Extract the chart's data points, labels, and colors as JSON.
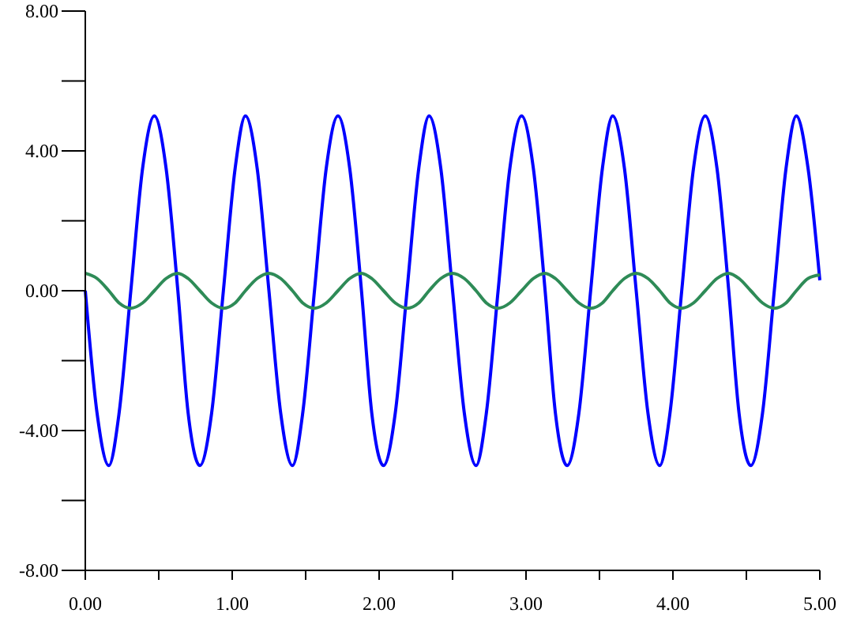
{
  "chart_data": {
    "type": "line",
    "x": [
      0,
      0.08,
      0.16,
      0.23,
      0.31,
      0.39,
      0.47,
      0.55,
      0.63,
      0.7,
      0.78,
      0.86,
      0.94,
      1.02,
      1.09,
      1.17,
      1.25,
      1.33,
      1.41,
      1.48,
      1.56,
      1.64,
      1.72,
      1.8,
      1.88,
      1.95,
      2.03,
      2.11,
      2.19,
      2.27,
      2.34,
      2.42,
      2.5,
      2.58,
      2.66,
      2.73,
      2.81,
      2.89,
      2.97,
      3.05,
      3.13,
      3.2,
      3.28,
      3.36,
      3.44,
      3.52,
      3.59,
      3.67,
      3.75,
      3.83,
      3.91,
      3.98,
      4.06,
      4.14,
      4.22,
      4.3,
      4.38,
      4.45,
      4.53,
      4.61,
      4.69,
      4.77,
      4.84,
      4.92,
      5.0
    ],
    "series": [
      {
        "color": "#0000ff",
        "values": [
          0,
          -3.5,
          -5,
          -3.5,
          0,
          3.5,
          5,
          3.5,
          0,
          -3.5,
          -5,
          -3.5,
          0,
          3.5,
          5,
          3.5,
          0,
          -3.5,
          -5,
          -3.5,
          0,
          3.5,
          5,
          3.5,
          0,
          -3.5,
          -5,
          -3.5,
          0,
          3.5,
          5,
          3.5,
          0,
          -3.5,
          -5,
          -3.5,
          0,
          3.5,
          5,
          3.5,
          0,
          -3.5,
          -5,
          -3.5,
          0,
          3.5,
          5,
          3.5,
          0,
          -3.5,
          -5,
          -3.5,
          0,
          3.5,
          5,
          3.5,
          0,
          -3.5,
          -5,
          -3.5,
          0,
          3.5,
          5,
          3.5,
          0.3
        ]
      },
      {
        "color": "#2e8b57",
        "values": [
          0.5,
          0.35,
          0,
          -0.35,
          -0.5,
          -0.35,
          0,
          0.35,
          0.5,
          0.35,
          0,
          -0.35,
          -0.5,
          -0.35,
          0,
          0.35,
          0.5,
          0.35,
          0,
          -0.35,
          -0.5,
          -0.35,
          0,
          0.35,
          0.5,
          0.35,
          0,
          -0.35,
          -0.5,
          -0.35,
          0,
          0.35,
          0.5,
          0.35,
          0,
          -0.35,
          -0.5,
          -0.35,
          0,
          0.35,
          0.5,
          0.35,
          0,
          -0.35,
          -0.5,
          -0.35,
          0,
          0.35,
          0.5,
          0.35,
          0,
          -0.35,
          -0.5,
          -0.35,
          0,
          0.35,
          0.5,
          0.35,
          0,
          -0.35,
          -0.5,
          -0.35,
          0,
          0.35,
          0.45
        ]
      }
    ],
    "xlim": [
      0,
      5
    ],
    "ylim": [
      -8,
      8
    ],
    "xticks": [
      {
        "value": 0,
        "label": "0.00"
      },
      {
        "value": 0.5,
        "label": null
      },
      {
        "value": 1,
        "label": "1.00"
      },
      {
        "value": 1.5,
        "label": null
      },
      {
        "value": 2,
        "label": "2.00"
      },
      {
        "value": 2.5,
        "label": null
      },
      {
        "value": 3,
        "label": "3.00"
      },
      {
        "value": 3.5,
        "label": null
      },
      {
        "value": 4,
        "label": "4.00"
      },
      {
        "value": 4.5,
        "label": null
      },
      {
        "value": 5,
        "label": "5.00"
      }
    ],
    "yticks": [
      {
        "value": -8,
        "label": "-8.00"
      },
      {
        "value": -6,
        "label": null
      },
      {
        "value": -4,
        "label": "-4.00"
      },
      {
        "value": -2,
        "label": null
      },
      {
        "value": 0,
        "label": "0.00"
      },
      {
        "value": 2,
        "label": null
      },
      {
        "value": 4,
        "label": "4.00"
      },
      {
        "value": 6,
        "label": null
      },
      {
        "value": 8,
        "label": "8.00"
      }
    ],
    "grid": false,
    "marker": "none",
    "line_style": "solid"
  }
}
